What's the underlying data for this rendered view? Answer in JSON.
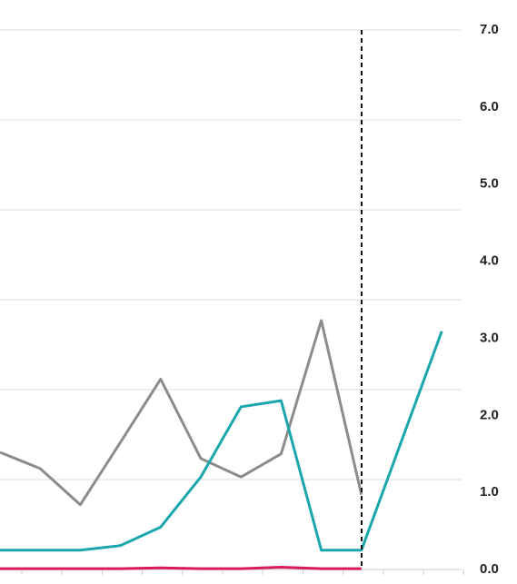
{
  "chart_data": {
    "type": "line",
    "categories": [
      null,
      null,
      null,
      null,
      null,
      null,
      null,
      null,
      null,
      null,
      null,
      null
    ],
    "series": [
      {
        "name": null,
        "color": "#8c8c8c",
        "axis": "y2",
        "values": [
          1.52,
          1.31,
          0.84,
          1.65,
          2.47,
          1.44,
          1.2,
          1.5,
          3.23,
          0.97,
          null,
          null
        ]
      },
      {
        "name": null,
        "color": "#1aa6ad",
        "axis": "y2",
        "values": [
          0.25,
          0.25,
          0.25,
          0.31,
          0.55,
          1.2,
          2.11,
          2.19,
          0.25,
          0.25,
          1.67,
          3.09
        ]
      },
      {
        "name": null,
        "color": "#d81b60",
        "axis": "y2",
        "values": [
          0.01,
          0.01,
          0.01,
          0.01,
          0.02,
          0.01,
          0.01,
          0.03,
          0.01,
          0.01,
          null,
          null
        ]
      }
    ],
    "ylim": [
      0,
      6
    ],
    "yticks": [
      0,
      1,
      2,
      3,
      4,
      5,
      6
    ],
    "grid": true,
    "y2lim": [
      0,
      7
    ],
    "y2ticks": [
      {
        "value": 0,
        "label": "0.0"
      },
      {
        "value": 1,
        "label": "1.0"
      },
      {
        "value": 2,
        "label": "2.0"
      },
      {
        "value": 3,
        "label": "3.0"
      },
      {
        "value": 4,
        "label": "4.0"
      },
      {
        "value": 5,
        "label": "5.0"
      },
      {
        "value": 6,
        "label": "6.0"
      },
      {
        "value": 7,
        "label": "7.0"
      }
    ]
  }
}
